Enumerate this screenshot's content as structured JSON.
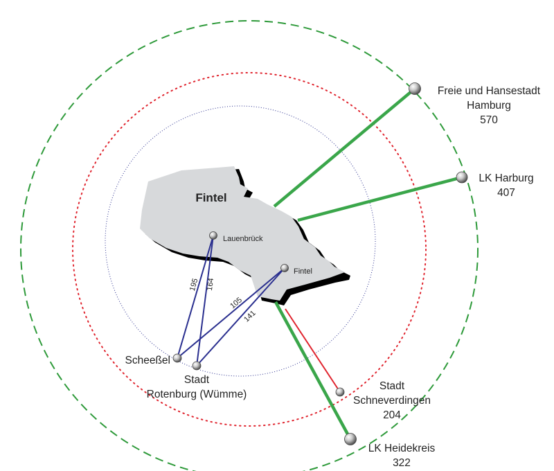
{
  "title": "Fintel",
  "places": {
    "lauenbrueck": "Lauenbrück",
    "fintel": "Fintel",
    "scheessel": "Scheeßel",
    "rotenburg_1": "Stadt",
    "rotenburg_2": "Rotenburg (Wümme)",
    "hamburg_1": "Freie und Hansestadt",
    "hamburg_2": "Hamburg",
    "hamburg_value": "570",
    "harburg_1": "LK Harburg",
    "harburg_value": "407",
    "schneverdingen_1": "Stadt",
    "schneverdingen_2": "Schneverdingen",
    "schneverdingen_value": "204",
    "heidekreis_1": "LK Heidekreis",
    "heidekreis_value": "322"
  },
  "connections": {
    "scheessel_lauenbrueck": "195",
    "rotenburg_lauenbrueck": "164",
    "scheessel_fintel": "105",
    "rotenburg_fintel": "141"
  },
  "colors": {
    "region_fill": "#d7d9db",
    "region_shadow": "#000000",
    "outer_ring": "#2e9a3a",
    "middle_ring": "#e0242e",
    "inner_ring": "#2a2f8f",
    "green_link": "#3aa64a",
    "red_link": "#e0242e",
    "blue_link": "#2a2f8f"
  }
}
